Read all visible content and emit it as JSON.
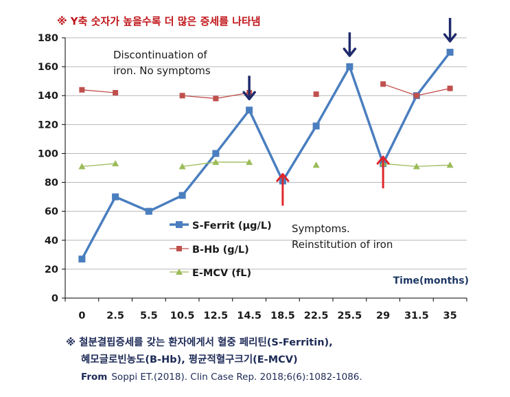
{
  "header_note": "※ Y축 숫자가 높을수록 더 많은 증세를 나타냄",
  "footer": {
    "line1": "※ 철분결핍증세를 갖는 환자에게서 혈중 페리틴(S-Ferritin),",
    "line2": "혜모글로빈농도(B-Hb), 평균적혈구크기(E-MCV)",
    "source_label": "From",
    "source_text": "Soppi ET.(2018).  Clin Case Rep. 2018;6(6):1082-1086."
  },
  "annotations": {
    "discontinuation_line1": "Discontinuation of",
    "discontinuation_line2": "iron. No symptoms",
    "symptoms_line1": "Symptoms.",
    "symptoms_line2": "Reinstitution of iron"
  },
  "colors": {
    "s_ferrit": "#4a7ebf",
    "b_hb": "#c0504d",
    "e_mcv": "#9bbb59",
    "down_arrow": "#1f2a6b",
    "up_arrow": "#e0262b",
    "grid": "#b7b7b7",
    "xlabel": "#1f3864"
  },
  "chart_data": {
    "type": "line",
    "categories": [
      "0",
      "2.5",
      "5.5",
      "10.5",
      "12.5",
      "14.5",
      "18.5",
      "22.5",
      "25.5",
      "29",
      "31.5",
      "35"
    ],
    "xlabel": "Time(months)",
    "ylabel": "",
    "ylim": [
      0,
      180
    ],
    "yticks": [
      0,
      20,
      40,
      60,
      80,
      100,
      120,
      140,
      160,
      180
    ],
    "grid": true,
    "legend_position": "center-left",
    "series": [
      {
        "name": "S-Ferrit (μg/L)",
        "marker": "square",
        "connect_gaps": true,
        "values": [
          27,
          70,
          60,
          71,
          100,
          130,
          81,
          119,
          160,
          93,
          140,
          170
        ]
      },
      {
        "name": "B-Hb (g/L)",
        "marker": "square",
        "connect_gaps": false,
        "values": [
          144,
          142,
          null,
          140,
          138,
          142,
          null,
          141,
          null,
          148,
          140,
          145
        ]
      },
      {
        "name": "E-MCV (fL)",
        "marker": "triangle",
        "connect_gaps": false,
        "values": [
          91,
          93,
          null,
          91,
          94,
          94,
          null,
          92,
          null,
          93,
          91,
          92
        ]
      }
    ],
    "down_arrows_at": [
      "14.5",
      "25.5",
      "35"
    ],
    "up_arrows_at": [
      "18.5",
      "29"
    ]
  }
}
